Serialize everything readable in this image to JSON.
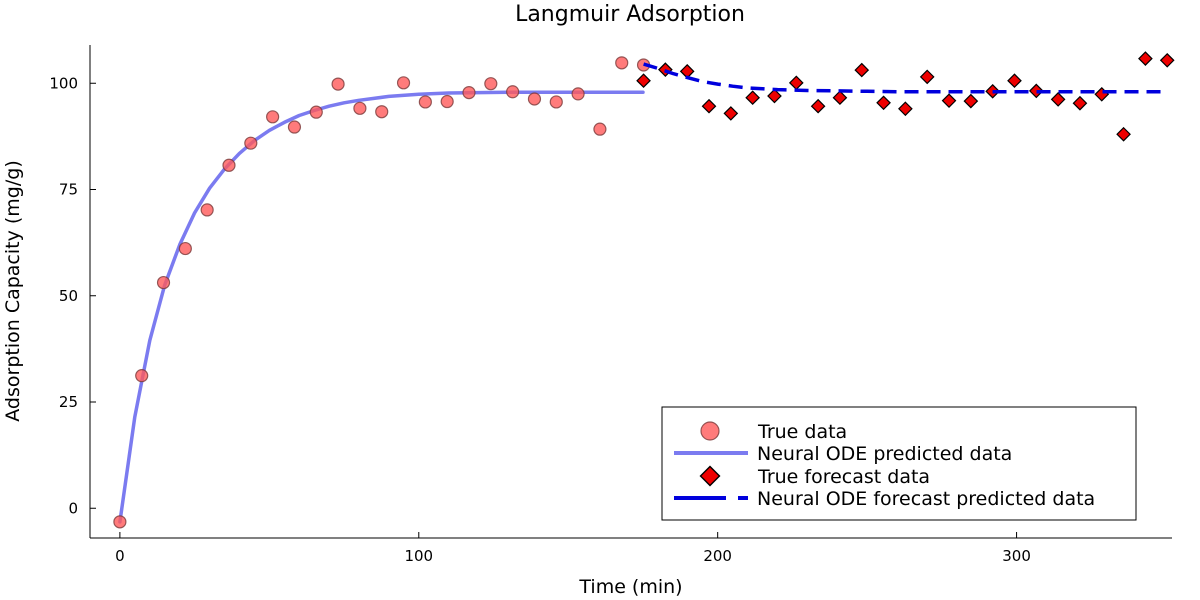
{
  "chart_data": {
    "type": "line",
    "title": "Langmuir Adsorption",
    "xlabel": "Time (min)",
    "ylabel": "Adsorption Capacity (mg/g)",
    "xlim": [
      -10,
      352
    ],
    "ylim": [
      -7,
      109
    ],
    "xticks": [
      0,
      100,
      200,
      300
    ],
    "yticks": [
      0,
      25,
      50,
      75,
      100
    ],
    "grid": false,
    "legend_position": "bottom-right",
    "colors": {
      "true_data": "#ff5a5a",
      "prediction_line": "#7b7bf0",
      "forecast_marker": "#ee0000",
      "forecast_line": "#0000dd"
    },
    "series": [
      {
        "name": "True data",
        "kind": "scatter-circle",
        "x": [
          0,
          7.3,
          14.6,
          21.9,
          29.2,
          36.5,
          43.8,
          51.1,
          58.4,
          65.7,
          73,
          80.3,
          87.6,
          94.9,
          102.2,
          109.5,
          116.8,
          124.1,
          131.4,
          138.7,
          146,
          153.3,
          160.6,
          167.9,
          175.2
        ],
        "y": [
          -3.2,
          31.2,
          53.1,
          61.1,
          70.2,
          80.7,
          85.9,
          92.1,
          89.7,
          93.2,
          99.8,
          94.1,
          93.3,
          100.1,
          95.6,
          95.7,
          97.8,
          99.9,
          98.0,
          96.3,
          95.6,
          97.5,
          89.2,
          104.8,
          104.3
        ]
      },
      {
        "name": "Neural ODE predicted data",
        "kind": "line-solid",
        "x": [
          0,
          5,
          10,
          15,
          20,
          25,
          30,
          35,
          40,
          45,
          50,
          55,
          60,
          65,
          70,
          75,
          80,
          90,
          100,
          110,
          120,
          130,
          140,
          150,
          160,
          175
        ],
        "y": [
          -3.2,
          21.5,
          39.5,
          52.5,
          62.0,
          69.5,
          75.3,
          79.8,
          83.5,
          86.5,
          88.9,
          90.8,
          92.4,
          93.6,
          94.6,
          95.4,
          96.0,
          96.9,
          97.4,
          97.7,
          97.8,
          97.9,
          97.9,
          97.9,
          97.9,
          97.9
        ]
      },
      {
        "name": "True forecast data",
        "kind": "scatter-diamond",
        "x": [
          175.2,
          182.5,
          189.8,
          197.1,
          204.4,
          211.7,
          219,
          226.3,
          233.6,
          240.9,
          248.2,
          255.5,
          262.8,
          270.1,
          277.4,
          284.7,
          292,
          299.3,
          306.6,
          313.9,
          321.2,
          328.5,
          335.8,
          343.1,
          350.4
        ],
        "y": [
          100.6,
          103.2,
          102.8,
          94.6,
          92.9,
          96.6,
          97.0,
          100.1,
          94.6,
          96.6,
          103.1,
          95.4,
          94.0,
          101.5,
          95.9,
          95.8,
          98.1,
          100.6,
          98.2,
          96.2,
          95.3,
          97.4,
          88.0,
          105.8,
          105.4
        ]
      },
      {
        "name": "Neural ODE forecast predicted data",
        "kind": "line-dashed",
        "x": [
          175.2,
          180,
          185,
          190,
          195,
          200,
          205,
          210,
          215,
          220,
          225,
          230,
          240,
          250,
          260,
          270,
          280,
          300,
          320,
          350
        ],
        "y": [
          104.5,
          103.5,
          102.3,
          101.3,
          100.4,
          99.8,
          99.3,
          98.9,
          98.7,
          98.5,
          98.4,
          98.3,
          98.2,
          98.1,
          98.0,
          98.0,
          98.0,
          98.0,
          98.0,
          98.0
        ]
      }
    ]
  }
}
